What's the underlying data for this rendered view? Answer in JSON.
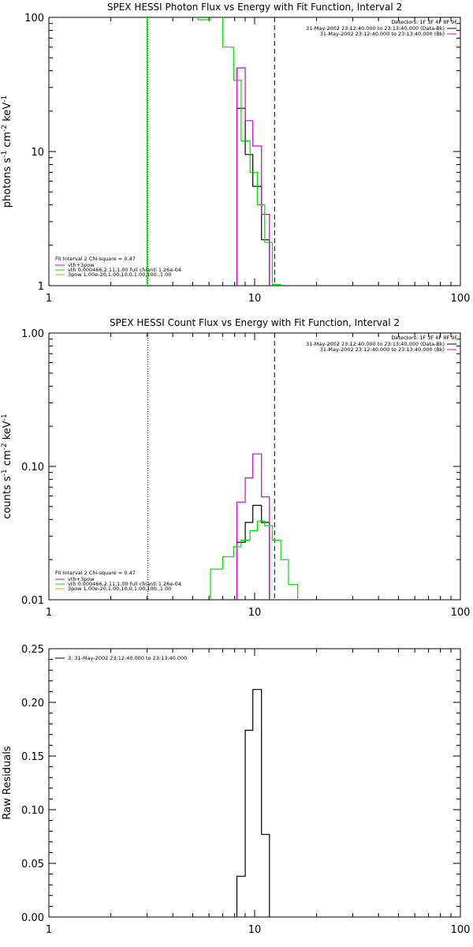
{
  "colors": {
    "black": "#000000",
    "magenta": "#d000d0",
    "green": "#00e000",
    "orange": "#e0a000",
    "olive": "#808000"
  },
  "chart_data": [
    {
      "type": "line",
      "title": "SPEX HESSI Photon Flux vs Energy with Fit Function, Interval 2",
      "ylabel": "photons s-1 cm-2 keV-1",
      "ylabel_parts": {
        "base": "photons s",
        "e1": "-1",
        "mid1": " cm",
        "e2": "-2",
        "mid2": " keV",
        "e3": "-1"
      },
      "x_scale": "log",
      "y_scale": "log",
      "xlim": [
        1,
        100
      ],
      "ylim": [
        1,
        100
      ],
      "x_ticks": [
        {
          "v": 1,
          "label": "1"
        },
        {
          "v": 10,
          "label": "10"
        },
        {
          "v": 100,
          "label": "100"
        }
      ],
      "y_ticks": [
        {
          "v": 1,
          "label": "1"
        },
        {
          "v": 10,
          "label": "10"
        },
        {
          "v": 100,
          "label": "100"
        }
      ],
      "vlines": [
        {
          "x": 3.0,
          "style": "dotted",
          "color": "green"
        },
        {
          "x": 3.03,
          "style": "dotted",
          "color": "black"
        },
        {
          "x": 12.5,
          "style": "dashed",
          "color": "black"
        }
      ],
      "detectors": "Detectors: 1F 3F 4F 8F 9F",
      "legend_right": [
        {
          "text": "31-May-2002 23:12:40.000 to 23:13:40.000 (Data-Bk)",
          "color": "black"
        },
        {
          "text": "31-May-2002 23:12:40.000 to 23:13:40.000 (Bk)",
          "color": "magenta"
        }
      ],
      "legend_left": {
        "header": "Fit Interval 2   Chi-square = 0.47",
        "items": [
          {
            "text": "vth+3pow",
            "color": "magenta"
          },
          {
            "text": "vth 0.000466,2.11,1.00  full chianti 1.26e-04",
            "color": "green"
          },
          {
            "text": "3pow 1.00e-20,1.00,10.0,1.00,100.,1.00",
            "color": "orange"
          }
        ]
      },
      "series": [
        {
          "name": "Data-Bk",
          "color": "black",
          "edges": [
            8.2,
            9.0,
            9.8,
            10.8,
            11.8,
            12.5
          ],
          "values": [
            21,
            9.5,
            5.5,
            2.2,
            0
          ]
        },
        {
          "name": "Bk",
          "color": "magenta",
          "edges": [
            8.2,
            9.0,
            9.8,
            10.8,
            11.8,
            12.5
          ],
          "values": [
            42,
            17,
            11,
            3.4,
            0
          ]
        },
        {
          "name": "vth+3pow",
          "color": "green",
          "edges": [
            3.0,
            5.3,
            6.1,
            7.0,
            7.9,
            8.6,
            9.5,
            10.3,
            11.2,
            12.2,
            13.4
          ],
          "values": [
            150,
            96,
            145,
            60,
            34,
            12,
            7,
            4,
            2.1,
            1.02
          ]
        }
      ]
    },
    {
      "type": "line",
      "title": "SPEX HESSI Count Flux vs Energy with Fit Function, Interval 2",
      "ylabel": "counts s-1 cm-2 keV-1",
      "ylabel_parts": {
        "base": "counts s",
        "e1": "-1",
        "mid1": " cm",
        "e2": "-2",
        "mid2": " keV",
        "e3": "-1"
      },
      "x_scale": "log",
      "y_scale": "log",
      "xlim": [
        1,
        100
      ],
      "ylim": [
        0.01,
        1
      ],
      "x_ticks": [
        {
          "v": 1,
          "label": "1"
        },
        {
          "v": 10,
          "label": "10"
        },
        {
          "v": 100,
          "label": "100"
        }
      ],
      "y_ticks": [
        {
          "v": 0.01,
          "label": "0.01"
        },
        {
          "v": 0.1,
          "label": "0.10"
        },
        {
          "v": 1,
          "label": "1.00"
        }
      ],
      "vlines": [
        {
          "x": 3.03,
          "style": "dotted",
          "color": "black"
        },
        {
          "x": 12.5,
          "style": "dashed",
          "color": "black"
        }
      ],
      "detectors": "Detectors: 1F 3F 4F 8F 9F",
      "legend_right": [
        {
          "text": "31-May-2002 23:12:40.000 to 23:13:40.000 (Data-Bk)",
          "color": "black"
        },
        {
          "text": "31-May-2002 23:12:40.000 to 23:13:40.000 (Bk)",
          "color": "magenta"
        }
      ],
      "legend_left": {
        "header": "Fit Interval 2   Chi-square = 0.47",
        "items": [
          {
            "text": "vth+3pow",
            "color": "magenta"
          },
          {
            "text": "vth 0.000466,2.11,1.00  full chianti 1.26e-04",
            "color": "green"
          },
          {
            "text": "3pow 1.00e-20,1.00,10.0,1.00,100.,1.00",
            "color": "orange"
          }
        ]
      },
      "series": [
        {
          "name": "Data-Bk",
          "color": "black",
          "edges": [
            8.2,
            9.0,
            9.8,
            10.8,
            11.8,
            12.5
          ],
          "values": [
            0.027,
            0.038,
            0.051,
            0.038,
            0.0095
          ]
        },
        {
          "name": "Bk",
          "color": "magenta",
          "edges": [
            8.2,
            9.0,
            9.8,
            10.8,
            11.8,
            12.5
          ],
          "values": [
            0.054,
            0.082,
            0.124,
            0.059,
            0.0095
          ]
        },
        {
          "name": "vth+3pow",
          "color": "green",
          "edges": [
            6.1,
            7.0,
            7.9,
            8.6,
            9.5,
            10.3,
            11.2,
            12.2,
            13.4,
            14.6,
            16.2
          ],
          "values": [
            0.017,
            0.021,
            0.025,
            0.028,
            0.033,
            0.039,
            0.036,
            0.028,
            0.02,
            0.013,
            0.0095
          ]
        }
      ]
    },
    {
      "type": "line",
      "title": "",
      "ylabel": "Raw Residuals",
      "x_scale": "log",
      "y_scale": "linear",
      "xlim": [
        1,
        100
      ],
      "ylim": [
        0,
        0.25
      ],
      "x_ticks": [
        {
          "v": 1,
          "label": "1"
        },
        {
          "v": 10,
          "label": "10"
        },
        {
          "v": 100,
          "label": "100"
        }
      ],
      "y_ticks": [
        {
          "v": 0,
          "label": "0.00"
        },
        {
          "v": 0.05,
          "label": "0.05"
        },
        {
          "v": 0.1,
          "label": "0.10"
        },
        {
          "v": 0.15,
          "label": "0.15"
        },
        {
          "v": 0.2,
          "label": "0.20"
        },
        {
          "v": 0.25,
          "label": "0.25"
        }
      ],
      "vlines": [],
      "legend_left_top": [
        {
          "text": "3: 31-May-2002 23:12:40.000 to 23:13:40.000",
          "color": "black"
        }
      ],
      "series": [
        {
          "name": "Residuals",
          "color": "black",
          "edges": [
            8.2,
            9.0,
            9.8,
            10.8,
            11.8,
            12.5
          ],
          "values": [
            0.038,
            0.174,
            0.212,
            0.077,
            0
          ]
        }
      ]
    }
  ]
}
